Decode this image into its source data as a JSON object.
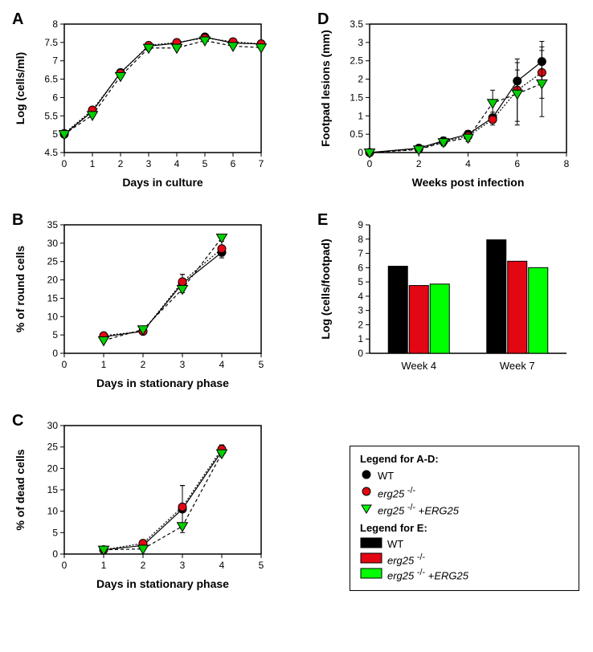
{
  "colors": {
    "wt": "#000000",
    "erg25": "#e30613",
    "erg25_erg": "#00d000",
    "axis": "#000000",
    "bg": "#ffffff"
  },
  "panelA": {
    "label": "A",
    "type": "line-scatter",
    "xlabel": "Days in culture",
    "ylabel": "Log (cells/ml)",
    "xlim": [
      0,
      7
    ],
    "ylim": [
      4.5,
      8.0
    ],
    "xticks": [
      0,
      1,
      2,
      3,
      4,
      5,
      6,
      7
    ],
    "yticks": [
      4.5,
      5.0,
      5.5,
      6.0,
      6.5,
      7.0,
      7.5,
      8.0
    ],
    "series": [
      {
        "name": "WT",
        "marker": "circle",
        "color": "#000000",
        "x": [
          0,
          1,
          2,
          3,
          4,
          5,
          6,
          7
        ],
        "y": [
          5.0,
          5.62,
          6.68,
          7.4,
          7.48,
          7.65,
          7.48,
          7.46
        ]
      },
      {
        "name": "erg25-/-",
        "marker": "circle",
        "color": "#e30613",
        "x": [
          0,
          1,
          2,
          3,
          4,
          5,
          6,
          7
        ],
        "y": [
          5.02,
          5.66,
          6.66,
          7.42,
          7.5,
          7.62,
          7.52,
          7.46
        ]
      },
      {
        "name": "erg25-/- +ERG25",
        "marker": "triangle-down",
        "color": "#00d000",
        "x": [
          0,
          1,
          2,
          3,
          4,
          5,
          6,
          7
        ],
        "y": [
          5.0,
          5.52,
          6.58,
          7.35,
          7.35,
          7.55,
          7.4,
          7.36
        ]
      }
    ]
  },
  "panelB": {
    "label": "B",
    "type": "line-scatter",
    "xlabel": "Days in stationary phase",
    "ylabel": "% of round cells",
    "xlim": [
      0,
      5
    ],
    "ylim": [
      0,
      35
    ],
    "xticks": [
      0,
      1,
      2,
      3,
      4,
      5
    ],
    "yticks": [
      0,
      5,
      10,
      15,
      20,
      25,
      30,
      35
    ],
    "series": [
      {
        "name": "WT",
        "marker": "circle",
        "color": "#000000",
        "x": [
          1,
          2,
          3,
          4
        ],
        "y": [
          4.5,
          6.0,
          19.0,
          27.5
        ],
        "err": [
          0,
          0,
          2.5,
          1.5
        ]
      },
      {
        "name": "erg25-/-",
        "marker": "circle",
        "color": "#e30613",
        "x": [
          1,
          2,
          3,
          4
        ],
        "y": [
          4.8,
          6.0,
          19.5,
          28.5
        ],
        "err": [
          0,
          0,
          2.0,
          2.0
        ]
      },
      {
        "name": "erg25-/- +ERG25",
        "marker": "triangle-down",
        "color": "#00d000",
        "x": [
          1,
          2,
          3,
          4
        ],
        "y": [
          3.5,
          6.5,
          17.5,
          31.5
        ],
        "err": [
          0,
          0,
          0,
          0
        ]
      }
    ]
  },
  "panelC": {
    "label": "C",
    "type": "line-scatter",
    "xlabel": "Days in stationary phase",
    "ylabel": "% of dead cells",
    "xlim": [
      0,
      5
    ],
    "ylim": [
      0,
      30
    ],
    "xticks": [
      0,
      1,
      2,
      3,
      4,
      5
    ],
    "yticks": [
      0,
      5,
      10,
      15,
      20,
      25,
      30
    ],
    "series": [
      {
        "name": "WT",
        "marker": "circle",
        "color": "#000000",
        "x": [
          1,
          2,
          3,
          4
        ],
        "y": [
          1.0,
          2.0,
          10.5,
          24.0
        ],
        "err": [
          0,
          0,
          5.5,
          1.0
        ]
      },
      {
        "name": "erg25-/-",
        "marker": "circle",
        "color": "#e30613",
        "x": [
          1,
          2,
          3,
          4
        ],
        "y": [
          1.0,
          2.5,
          11.0,
          24.5
        ],
        "err": [
          0,
          0,
          5.0,
          1.0
        ]
      },
      {
        "name": "erg25-/- +ERG25",
        "marker": "triangle-down",
        "color": "#00d000",
        "x": [
          1,
          2,
          3,
          4
        ],
        "y": [
          1.0,
          1.2,
          6.5,
          23.5
        ],
        "err": [
          0,
          0,
          0,
          0
        ]
      }
    ]
  },
  "panelD": {
    "label": "D",
    "type": "line-scatter",
    "xlabel": "Weeks post infection",
    "ylabel": "Footpad lesions (mm)",
    "xlim": [
      0,
      8
    ],
    "ylim": [
      0,
      3.5
    ],
    "xticks": [
      0,
      2,
      4,
      6,
      8
    ],
    "yticks": [
      0,
      0.5,
      1.0,
      1.5,
      2.0,
      2.5,
      3.0,
      3.5
    ],
    "series": [
      {
        "name": "WT",
        "marker": "circle",
        "color": "#000000",
        "x": [
          0,
          2,
          3,
          4,
          5,
          6,
          7
        ],
        "y": [
          0,
          0.12,
          0.32,
          0.5,
          0.95,
          1.95,
          2.48
        ],
        "err": [
          0,
          0,
          0.1,
          0.1,
          0.15,
          0.3,
          0.55
        ]
      },
      {
        "name": "erg25-/-",
        "marker": "circle",
        "color": "#e30613",
        "x": [
          0,
          2,
          3,
          4,
          5,
          6,
          7
        ],
        "y": [
          0,
          0.1,
          0.3,
          0.45,
          0.9,
          1.7,
          2.18
        ],
        "err": [
          0,
          0,
          0.1,
          0.1,
          0.15,
          0.85,
          0.7
        ]
      },
      {
        "name": "erg25-/- +ERG25",
        "marker": "triangle-down",
        "color": "#00d000",
        "x": [
          0,
          2,
          3,
          4,
          5,
          6,
          7
        ],
        "y": [
          0,
          0.08,
          0.28,
          0.4,
          1.35,
          1.6,
          1.88
        ],
        "err": [
          0,
          0,
          0.1,
          0.1,
          0.35,
          0.85,
          0.9
        ]
      }
    ]
  },
  "panelE": {
    "label": "E",
    "type": "bar",
    "xlabel_groups": [
      "Week 4",
      "Week 7"
    ],
    "ylabel": "Log (cells/footpad)",
    "ylim": [
      0,
      9
    ],
    "yticks": [
      0,
      1,
      2,
      3,
      4,
      5,
      6,
      7,
      8,
      9
    ],
    "bar_colors": [
      "#000000",
      "#e30613",
      "#00ff00"
    ],
    "series_names": [
      "WT",
      "erg25-/-",
      "erg25-/- +ERG25"
    ],
    "groups": [
      {
        "label": "Week 4",
        "values": [
          6.1,
          4.75,
          4.85
        ]
      },
      {
        "label": "Week 7",
        "values": [
          7.95,
          6.45,
          6.0
        ]
      }
    ]
  },
  "legend": {
    "title_ad": "Legend for A-D:",
    "title_e": "Legend for E:",
    "items_ad": [
      {
        "label": "WT",
        "marker": "circle",
        "color": "#000000"
      },
      {
        "label": "erg25 -/-",
        "marker": "circle",
        "color": "#e30613",
        "italic": true
      },
      {
        "label": "erg25 -/- +ERG25",
        "marker": "triangle-down",
        "color": "#00ff00",
        "italic": true
      }
    ],
    "items_e": [
      {
        "label": "WT",
        "color": "#000000"
      },
      {
        "label": "erg25 -/-",
        "color": "#e30613",
        "italic": true
      },
      {
        "label": "erg25 -/- +ERG25",
        "color": "#00ff00",
        "italic": true
      }
    ]
  }
}
